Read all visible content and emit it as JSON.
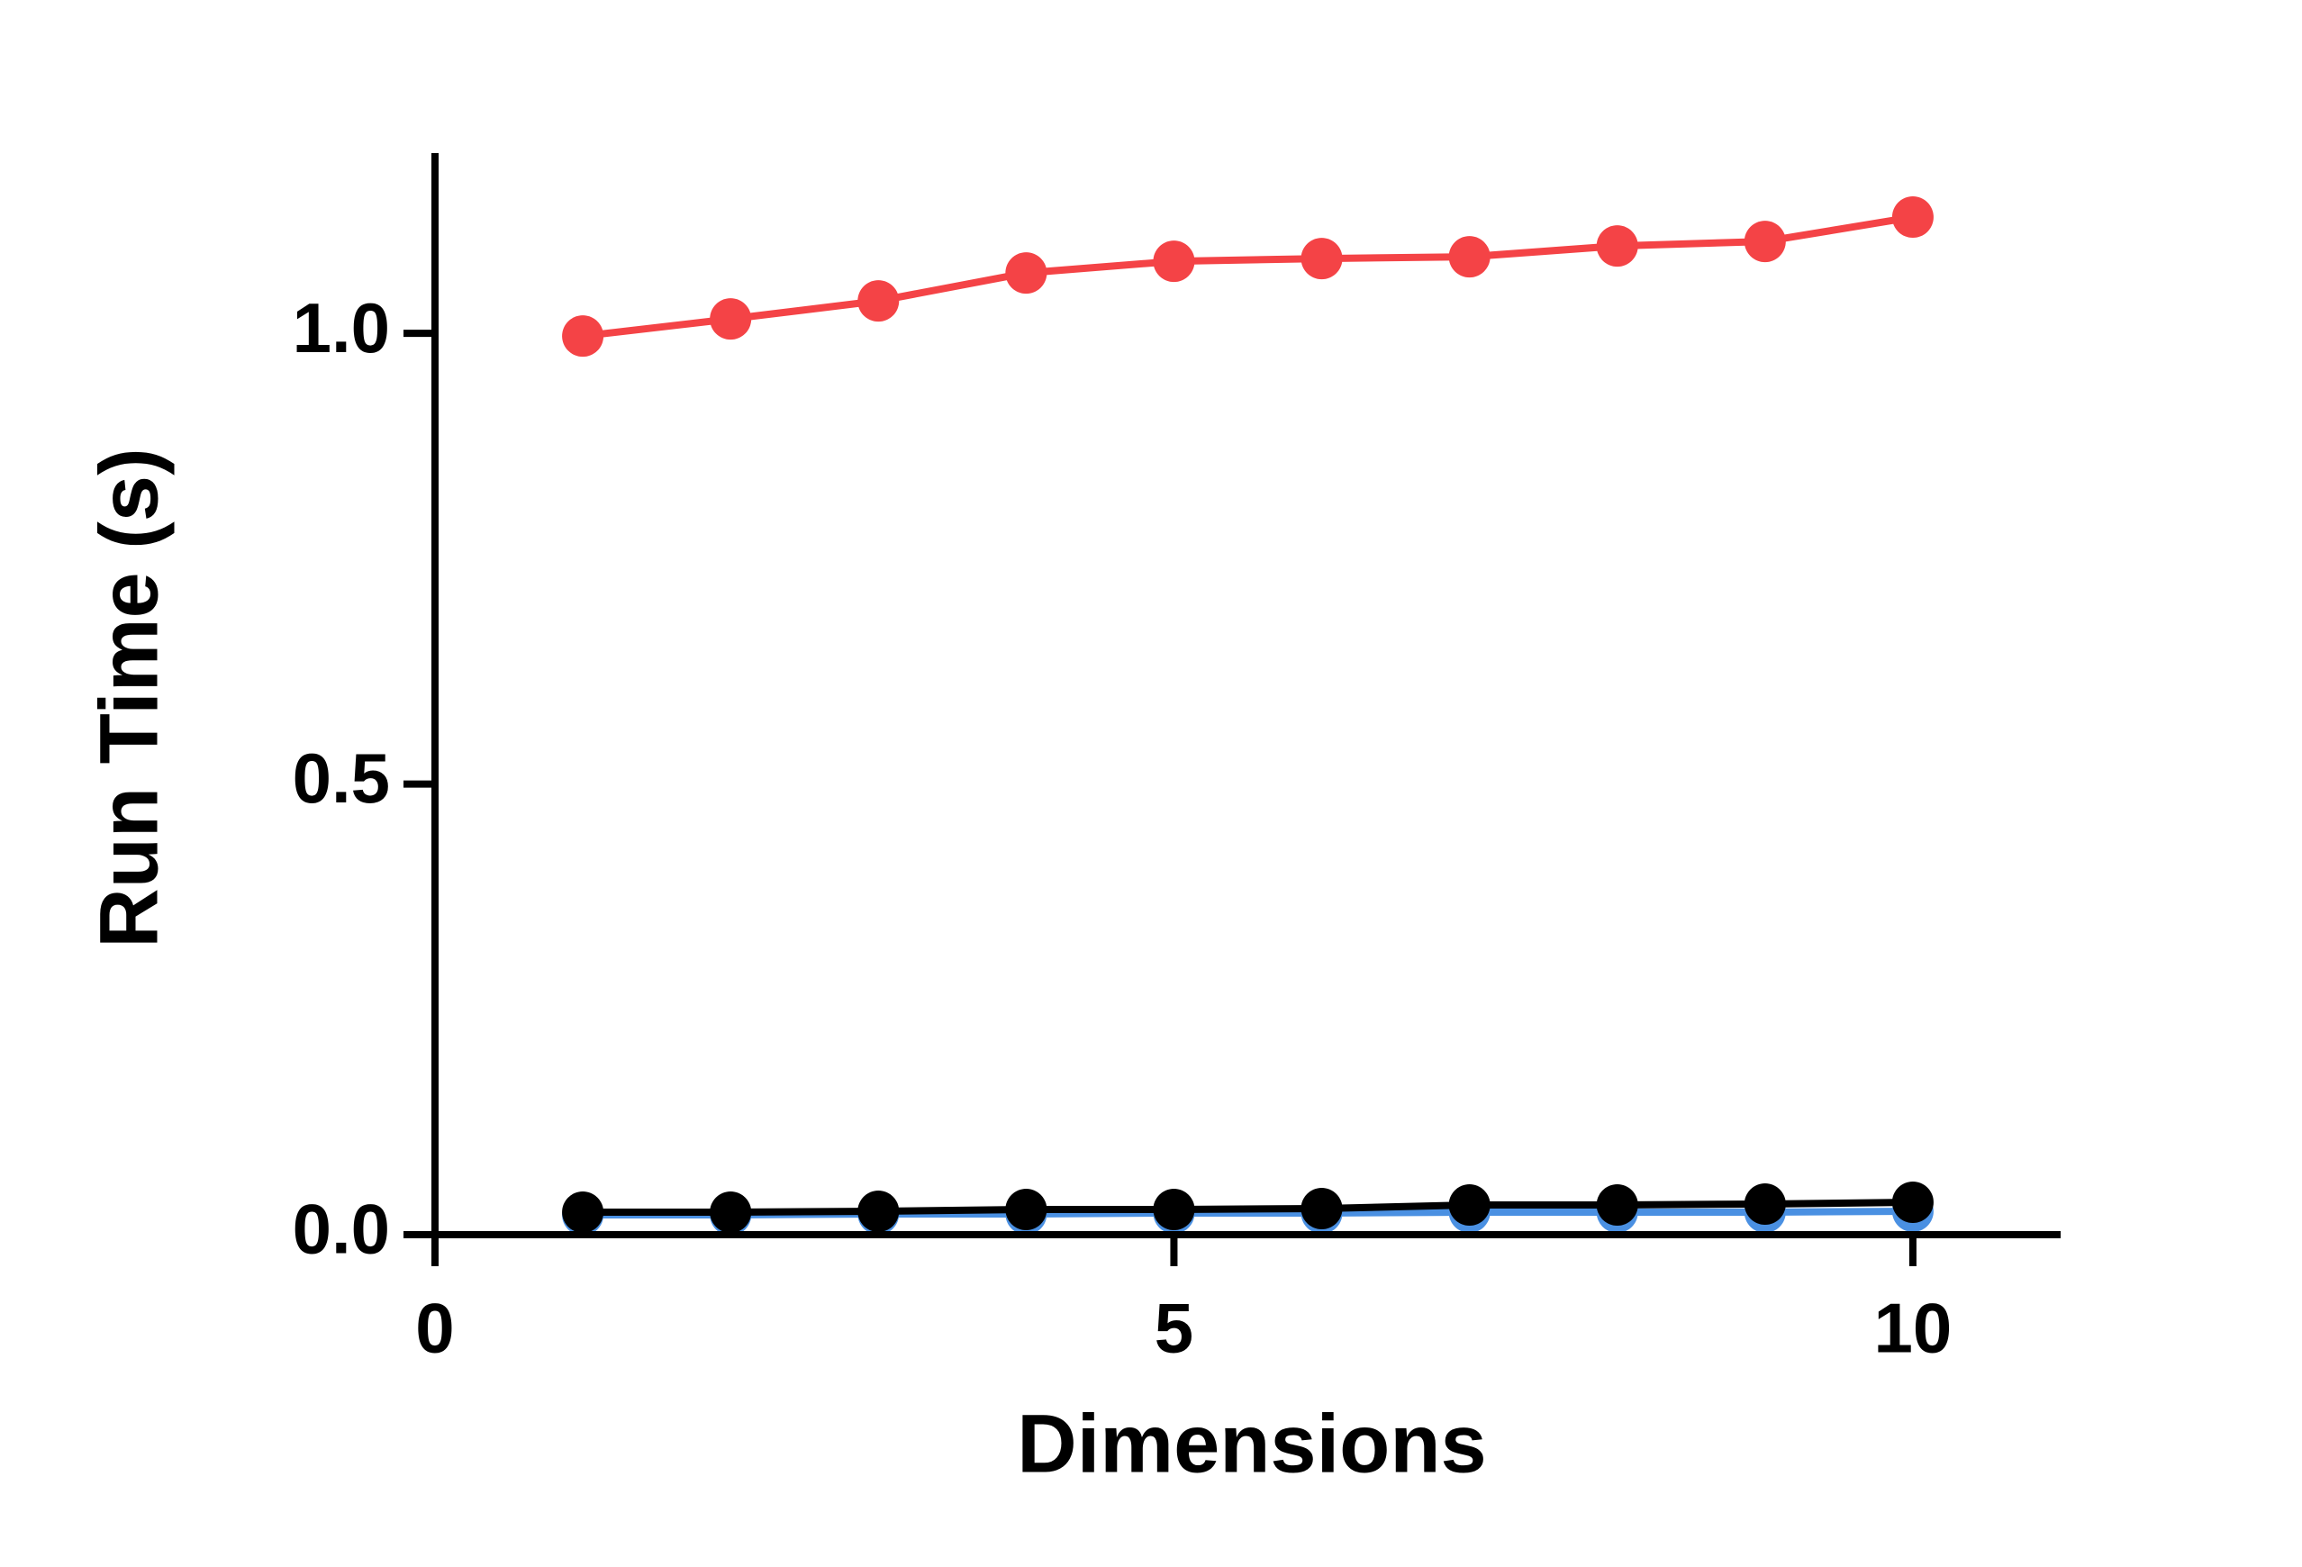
{
  "chart_data": {
    "type": "line",
    "x_label": "Dimensions",
    "y_label": "Run Time (s)",
    "x": [
      1,
      2,
      3,
      4,
      5,
      6,
      7,
      8,
      9,
      10
    ],
    "series": [
      {
        "color": "#f44346",
        "values": [
          0.997,
          1.016,
          1.036,
          1.067,
          1.08,
          1.083,
          1.085,
          1.097,
          1.102,
          1.129
        ]
      },
      {
        "color": "#4a90e2",
        "values": [
          0.022,
          0.022,
          0.023,
          0.023,
          0.024,
          0.024,
          0.025,
          0.025,
          0.025,
          0.026
        ]
      },
      {
        "color": "#000000",
        "values": [
          0.025,
          0.025,
          0.026,
          0.028,
          0.028,
          0.029,
          0.033,
          0.033,
          0.034,
          0.036
        ]
      }
    ],
    "xlim": [
      0,
      11
    ],
    "ylim": [
      0,
      1.2
    ],
    "xticks": [
      0,
      5,
      10
    ],
    "yticks": [
      {
        "value": 0,
        "label": "0.0"
      },
      {
        "value": 0.5,
        "label": "0.5"
      },
      {
        "value": 1,
        "label": "1.0"
      }
    ]
  }
}
